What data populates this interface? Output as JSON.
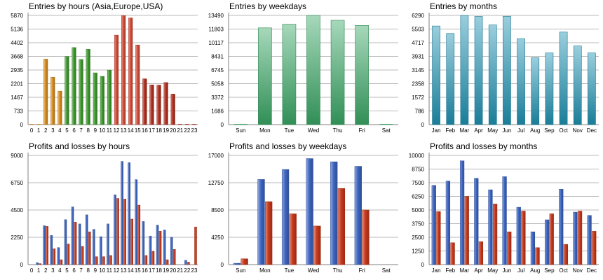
{
  "chart_data": [
    {
      "type": "bar",
      "title": "Entries by hours (Asia,Europe,USA)",
      "categories": [
        "0",
        "1",
        "2",
        "3",
        "4",
        "5",
        "6",
        "7",
        "8",
        "9",
        "10",
        "11",
        "12",
        "13",
        "14",
        "15",
        "16",
        "17",
        "18",
        "19",
        "20",
        "21",
        "22",
        "23"
      ],
      "values": [
        0,
        0,
        3520,
        2550,
        1800,
        3660,
        4140,
        3500,
        4050,
        2780,
        2590,
        2930,
        4810,
        5860,
        5730,
        4280,
        2460,
        2130,
        2120,
        2260,
        1640,
        0,
        0,
        0
      ],
      "yticks": [
        0,
        733,
        1467,
        2201,
        2935,
        3668,
        4402,
        5136,
        5870
      ],
      "ylim": [
        0,
        5870
      ],
      "colors": [
        "#d98d1e",
        "#d98d1e",
        "#d98d1e",
        "#d98d1e",
        "#d98d1e",
        "#3f9a2e",
        "#3f9a2e",
        "#3f9a2e",
        "#3f9a2e",
        "#3f9a2e",
        "#3f9a2e",
        "#3f9a2e",
        "#d44e3a",
        "#d44e3a",
        "#d44e3a",
        "#d44e3a",
        "#b3301f",
        "#b3301f",
        "#b3301f",
        "#b3301f",
        "#b3301f",
        "#b3301f",
        "#b3301f",
        "#b3301f"
      ],
      "grid": true
    },
    {
      "type": "bar",
      "title": "Entries by weekdays",
      "categories": [
        "Sun",
        "Mon",
        "Tue",
        "Wed",
        "Thu",
        "Fri",
        "Sat"
      ],
      "values": [
        0,
        11950,
        12400,
        13490,
        12890,
        12250,
        0
      ],
      "yticks": [
        0,
        1686,
        3372,
        5058,
        6745,
        8431,
        10117,
        11803,
        13490
      ],
      "ylim": [
        0,
        13490
      ],
      "colors": [
        "#3aa865",
        "#3aa865",
        "#3aa865",
        "#3aa865",
        "#3aa865",
        "#3aa865",
        "#3aa865"
      ],
      "grid": true
    },
    {
      "type": "bar",
      "title": "Entries by months",
      "categories": [
        "Jan",
        "Feb",
        "Mar",
        "Apr",
        "May",
        "Jun",
        "Jul",
        "Aug",
        "Sep",
        "Oct",
        "Nov",
        "Dec"
      ],
      "values": [
        5680,
        5250,
        6290,
        6230,
        5740,
        6240,
        4950,
        3850,
        4130,
        5330,
        4530,
        4130
      ],
      "yticks": [
        0,
        786,
        1572,
        2358,
        3145,
        3931,
        4717,
        5503,
        6290
      ],
      "ylim": [
        0,
        6290
      ],
      "colors": [
        "#1f93b3",
        "#1f93b3",
        "#1f93b3",
        "#1f93b3",
        "#1f93b3",
        "#1f93b3",
        "#1f93b3",
        "#1f93b3",
        "#1f93b3",
        "#1f93b3",
        "#1f93b3",
        "#1f93b3"
      ],
      "grid": true
    },
    {
      "type": "bar",
      "title": "Profits and losses by hours",
      "categories": [
        "0",
        "1",
        "2",
        "3",
        "4",
        "5",
        "6",
        "7",
        "8",
        "9",
        "10",
        "11",
        "12",
        "13",
        "14",
        "15",
        "16",
        "17",
        "18",
        "19",
        "20",
        "21",
        "22",
        "23"
      ],
      "series": [
        {
          "values": [
            0,
            150,
            3200,
            2400,
            1400,
            3700,
            4750,
            3350,
            4100,
            2900,
            2300,
            3350,
            5750,
            8500,
            8400,
            7000,
            3550,
            2350,
            3250,
            2850,
            2250,
            0,
            350,
            0
          ],
          "color": "#3e66c2"
        },
        {
          "values": [
            0,
            80,
            3150,
            1300,
            400,
            1700,
            3500,
            1500,
            2700,
            650,
            650,
            750,
            5450,
            5400,
            3750,
            4900,
            750,
            1100,
            2750,
            400,
            1250,
            0,
            200,
            3100
          ],
          "color": "#c9391c"
        }
      ],
      "yticks": [
        0,
        2250,
        4500,
        6750,
        9000
      ],
      "ylim": [
        0,
        9000
      ],
      "grid": true
    },
    {
      "type": "bar",
      "title": "Profits and losses by weekdays",
      "categories": [
        "Sun",
        "Mon",
        "Tue",
        "Wed",
        "Thu",
        "Fri",
        "Sat"
      ],
      "series": [
        {
          "values": [
            200,
            13250,
            14800,
            16500,
            16000,
            15300,
            0
          ],
          "color": "#3e66c2"
        },
        {
          "values": [
            900,
            9800,
            7900,
            6000,
            11850,
            8500,
            0
          ],
          "color": "#c9391c"
        }
      ],
      "yticks": [
        0,
        4250,
        8500,
        12750,
        17000
      ],
      "ylim": [
        0,
        17000
      ],
      "grid": true
    },
    {
      "type": "bar",
      "title": "Profits and losses by months",
      "categories": [
        "Jan",
        "Feb",
        "Mar",
        "Apr",
        "May",
        "Jun",
        "Jul",
        "Aug",
        "Sep",
        "Oct",
        "Nov",
        "Dec"
      ],
      "series": [
        {
          "values": [
            7250,
            7650,
            9500,
            7900,
            6850,
            8050,
            5250,
            3000,
            4100,
            6900,
            4800,
            4500
          ],
          "color": "#3e66c2"
        },
        {
          "values": [
            4850,
            2000,
            6250,
            2100,
            5550,
            3000,
            4900,
            1550,
            4650,
            1850,
            4900,
            3050
          ],
          "color": "#c9391c"
        }
      ],
      "yticks": [
        0,
        1250,
        2500,
        3750,
        5000,
        6250,
        7500,
        8750,
        10000
      ],
      "ylim": [
        0,
        10000
      ],
      "grid": true
    }
  ]
}
